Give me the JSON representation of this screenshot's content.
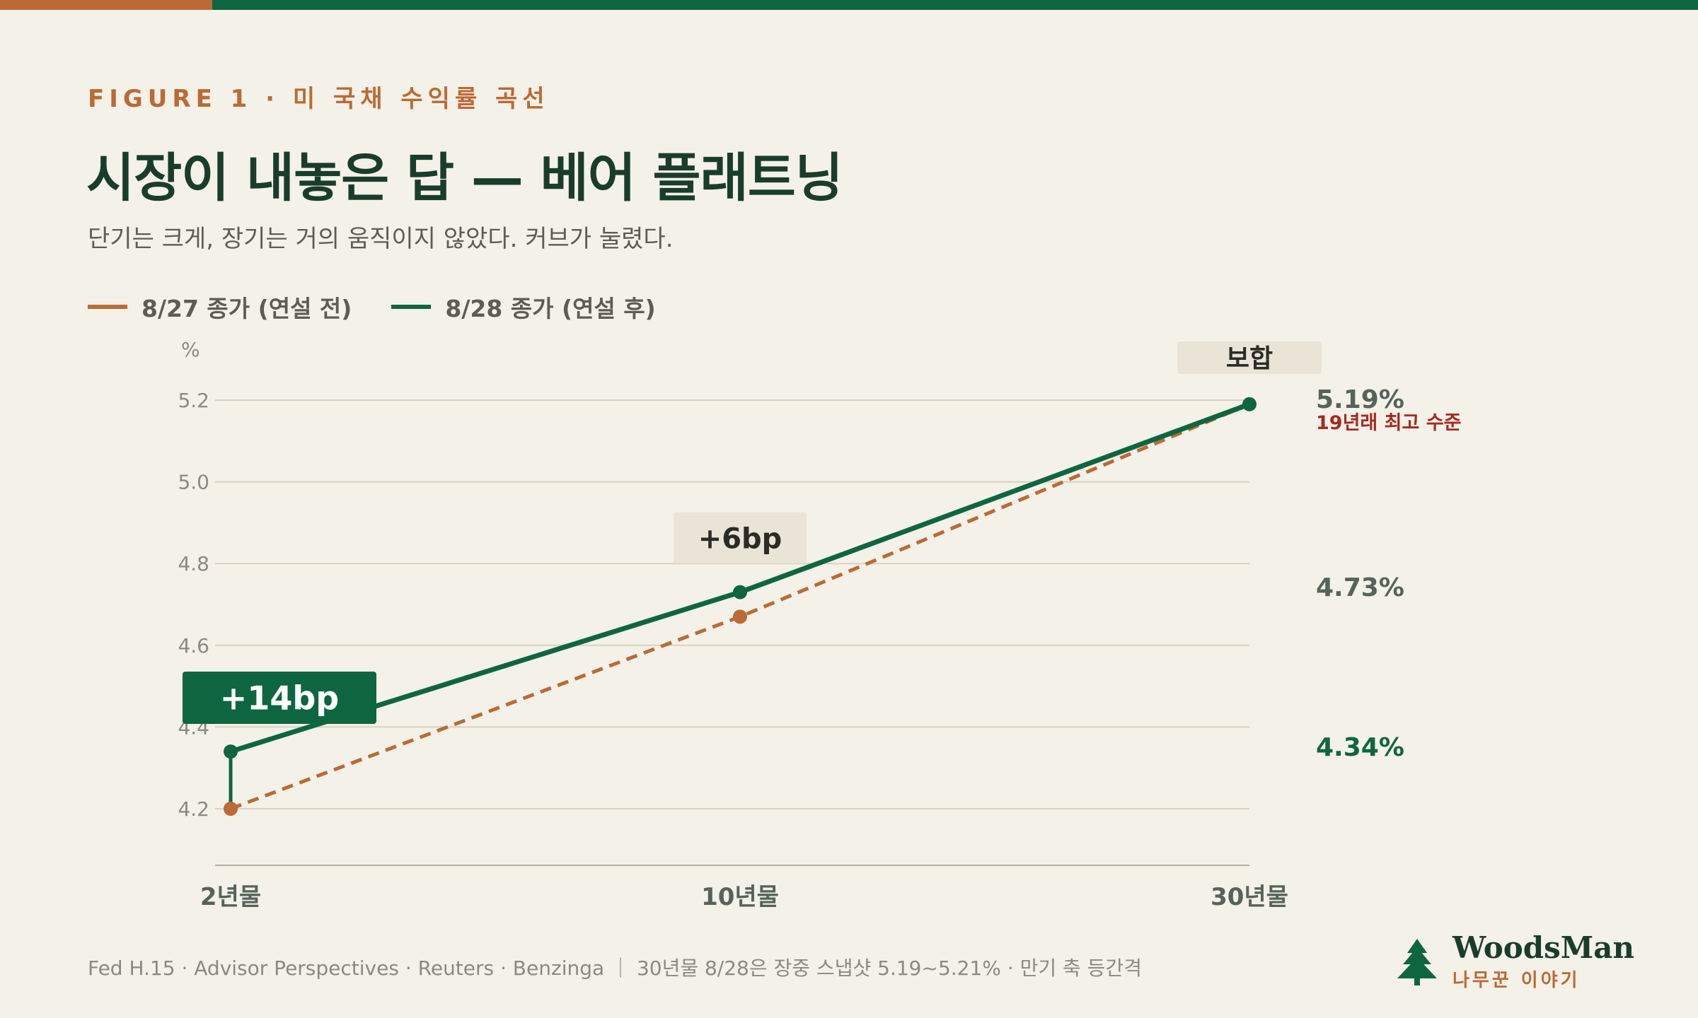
{
  "header": {
    "eyebrow": "FIGURE 1 · 미 국채 수익률 곡선",
    "title": "시장이 내놓은 답 — 베어 플래트닝",
    "subtitle": "단기는 크게, 장기는 거의 움직이지 않았다. 커브가 눌렸다."
  },
  "colors": {
    "orange": "#bb6a35",
    "green": "#0e6640",
    "dark_green": "#1a3d2b",
    "red": "#a32a23",
    "grid": "#d8d3bd",
    "callout_bg": "#e9e4d6",
    "text_muted": "#8a8a80"
  },
  "chart_data": {
    "type": "line",
    "title": "시장이 내놓은 답 — 베어 플래트닝",
    "ylabel": "%",
    "categories": [
      "2년물",
      "10년물",
      "30년물"
    ],
    "ylim": [
      4.05,
      5.28
    ],
    "yticks": [
      4.2,
      4.4,
      4.6,
      4.8,
      5.0,
      5.2
    ],
    "grid": true,
    "legend_position": "top-left",
    "series": [
      {
        "name": "8/27 종가 (연설 전)",
        "values": [
          4.2,
          4.67,
          5.19
        ],
        "color": "#bb6a35",
        "style": "dashed"
      },
      {
        "name": "8/28 종가 (연설 후)",
        "values": [
          4.34,
          4.73,
          5.19
        ],
        "color": "#0e6640",
        "style": "solid"
      }
    ],
    "value_labels": [
      {
        "text": "5.19%",
        "value": 5.19,
        "color": "#55645a",
        "note": "19년래 최고 수준",
        "note_color": "#a32a23"
      },
      {
        "text": "4.73%",
        "value": 4.73,
        "color": "#55645a"
      },
      {
        "text": "4.34%",
        "value": 4.34,
        "color": "#0e6640"
      }
    ],
    "callouts": [
      {
        "category_index": 0,
        "text": "+14bp",
        "style": "solid-green"
      },
      {
        "category_index": 1,
        "text": "+6bp",
        "style": "light"
      },
      {
        "category_index": 2,
        "text": "보합",
        "style": "light"
      }
    ]
  },
  "footer": {
    "sources": "Fed H.15 · Advisor Perspectives · Reuters · Benzinga ｜ 30년물 8/28은 장중 스냅샷 5.19~5.21% · 만기 축 등간격",
    "logo_name": "WoodsMan",
    "logo_sub": "나무꾼 이야기",
    "logo_icon": "pine-tree-icon"
  }
}
